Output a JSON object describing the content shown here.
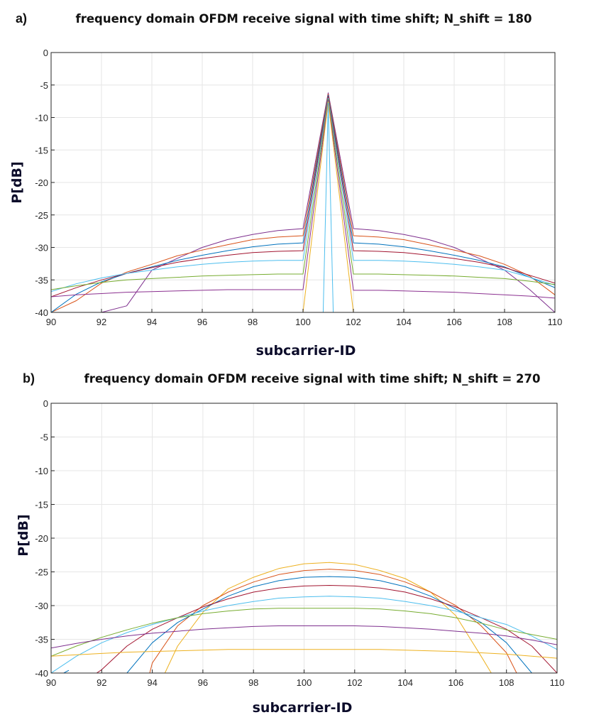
{
  "chart_data": [
    {
      "panel_label": "a)",
      "type": "line",
      "title": "frequency domain OFDM receive signal with time shift; N_shift = 180",
      "xlabel": "subcarrier-ID",
      "ylabel": "P[dB]",
      "xlim": [
        90,
        110
      ],
      "ylim": [
        -40,
        0
      ],
      "xticks": [
        90,
        92,
        94,
        96,
        98,
        100,
        102,
        104,
        106,
        108,
        110
      ],
      "yticks": [
        0,
        -5,
        -10,
        -15,
        -20,
        -25,
        -30,
        -35,
        -40
      ],
      "grid": true,
      "series": [
        {
          "color": "#7e2f8e",
          "x": [
            90,
            91,
            92,
            93,
            94,
            95,
            96,
            97,
            98,
            99,
            100,
            101,
            102,
            103,
            104,
            105,
            106,
            107,
            108,
            109,
            110
          ],
          "y": [
            -40,
            -40,
            -40,
            -39,
            -33.5,
            -31.7,
            -30,
            -28.8,
            -28,
            -27.4,
            -27.1,
            -6.2,
            -27.1,
            -27.4,
            -28,
            -28.8,
            -30,
            -31.7,
            -33.5,
            -36.5,
            -40
          ]
        },
        {
          "color": "#d95319",
          "x": [
            90,
            91,
            92,
            93,
            94,
            95,
            96,
            97,
            98,
            99,
            100,
            101,
            102,
            103,
            104,
            105,
            106,
            107,
            108,
            109,
            110
          ],
          "y": [
            -40,
            -38.2,
            -35.5,
            -33.8,
            -32.6,
            -31.3,
            -30.4,
            -29.6,
            -28.8,
            -28.4,
            -28.2,
            -6.4,
            -28.2,
            -28.4,
            -28.8,
            -29.6,
            -30.4,
            -31.3,
            -32.6,
            -34.4,
            -37.3
          ]
        },
        {
          "color": "#0072bd",
          "x": [
            90,
            91,
            92,
            93,
            94,
            95,
            96,
            97,
            98,
            99,
            100,
            101,
            102,
            103,
            104,
            105,
            106,
            107,
            108,
            109,
            110
          ],
          "y": [
            -40,
            -37.2,
            -35.3,
            -34,
            -33,
            -32,
            -31.2,
            -30.5,
            -29.9,
            -29.5,
            -29.3,
            -6.6,
            -29.3,
            -29.5,
            -29.9,
            -30.5,
            -31.2,
            -32,
            -33,
            -34.6,
            -36.2
          ]
        },
        {
          "color": "#a2142f",
          "x": [
            90,
            91,
            92,
            93,
            94,
            95,
            96,
            97,
            98,
            99,
            100,
            101,
            102,
            103,
            104,
            105,
            106,
            107,
            108,
            109,
            110
          ],
          "y": [
            -37.6,
            -36.2,
            -35,
            -34,
            -33.1,
            -32.3,
            -31.7,
            -31.2,
            -30.8,
            -30.6,
            -30.5,
            -6.8,
            -30.5,
            -30.6,
            -30.8,
            -31.2,
            -31.7,
            -32.3,
            -33.1,
            -34.3,
            -35.5
          ]
        },
        {
          "color": "#4dbeee",
          "x": [
            90,
            91,
            92,
            93,
            94,
            95,
            96,
            97,
            98,
            99,
            100,
            101,
            102,
            103,
            104,
            105,
            106,
            107,
            108,
            109,
            110
          ],
          "y": [
            -36.8,
            -35.6,
            -34.7,
            -34,
            -33.5,
            -33,
            -32.6,
            -32.3,
            -32.1,
            -32,
            -32,
            -7,
            -32,
            -32,
            -32.1,
            -32.3,
            -32.6,
            -33,
            -33.5,
            -34.6,
            -35.8
          ]
        },
        {
          "color": "#77ac30",
          "x": [
            90,
            91,
            92,
            93,
            94,
            95,
            96,
            97,
            98,
            99,
            100,
            101,
            102,
            103,
            104,
            105,
            106,
            107,
            108,
            109,
            110
          ],
          "y": [
            -36.5,
            -35.9,
            -35.4,
            -35,
            -34.8,
            -34.6,
            -34.4,
            -34.3,
            -34.2,
            -34.1,
            -34.1,
            -7.2,
            -34.1,
            -34.1,
            -34.2,
            -34.3,
            -34.4,
            -34.6,
            -34.8,
            -35.2,
            -35.7
          ]
        },
        {
          "color": "#8b3090",
          "x": [
            90,
            91,
            92,
            93,
            94,
            95,
            96,
            97,
            98,
            99,
            100,
            101,
            102,
            103,
            104,
            105,
            106,
            107,
            108,
            109,
            110
          ],
          "y": [
            -37.6,
            -37.3,
            -37.1,
            -36.9,
            -36.8,
            -36.7,
            -36.6,
            -36.5,
            -36.5,
            -36.5,
            -36.5,
            -7.4,
            -36.6,
            -36.6,
            -36.7,
            -36.8,
            -36.9,
            -37.1,
            -37.3,
            -37.5,
            -37.8
          ]
        },
        {
          "color": "#edb120",
          "x": [
            93.3,
            94,
            96,
            98,
            99,
            100,
            101,
            102
          ],
          "y": [
            -40,
            -40,
            -40,
            -40,
            -40,
            -40,
            -7.6,
            -40
          ]
        },
        {
          "color": "#4dbeee",
          "x": [
            100.8,
            101,
            101.2
          ],
          "y": [
            -40,
            -7.8,
            -40
          ]
        }
      ]
    },
    {
      "panel_label": "b)",
      "type": "line",
      "title": "frequency domain OFDM receive signal with time shift; N_shift = 270",
      "xlabel": "subcarrier-ID",
      "ylabel": "P[dB]",
      "xlim": [
        90,
        110
      ],
      "ylim": [
        -40,
        0
      ],
      "xticks": [
        90,
        92,
        94,
        96,
        98,
        100,
        102,
        104,
        106,
        108,
        110
      ],
      "yticks": [
        0,
        -5,
        -10,
        -15,
        -20,
        -25,
        -30,
        -35,
        -40
      ],
      "grid": true,
      "series": [
        {
          "color": "#edb120",
          "x": [
            94.5,
            95,
            96,
            97,
            98,
            99,
            100,
            101,
            102,
            103,
            104,
            105,
            106,
            107,
            107.4
          ],
          "y": [
            -40,
            -36,
            -31,
            -27.5,
            -25.8,
            -24.5,
            -23.8,
            -23.6,
            -23.9,
            -24.8,
            -26,
            -28,
            -31.5,
            -37.5,
            -40
          ]
        },
        {
          "color": "#d95319",
          "x": [
            93.9,
            94,
            95,
            96,
            97,
            98,
            99,
            100,
            101,
            102,
            103,
            104,
            105,
            106,
            107,
            108,
            108.4
          ],
          "y": [
            -40,
            -38.5,
            -33,
            -30,
            -28,
            -26.5,
            -25.4,
            -24.8,
            -24.6,
            -24.8,
            -25.4,
            -26.5,
            -28,
            -30,
            -33,
            -37,
            -40
          ]
        },
        {
          "color": "#0072bd",
          "x": [
            93,
            94,
            95,
            96,
            97,
            98,
            99,
            100,
            101,
            102,
            103,
            104,
            105,
            106,
            107,
            108,
            109
          ],
          "y": [
            -40,
            -35.5,
            -32.5,
            -30.5,
            -28.6,
            -27.2,
            -26.3,
            -25.8,
            -25.7,
            -25.8,
            -26.3,
            -27.2,
            -28.6,
            -30.5,
            -32.5,
            -35.5,
            -40
          ]
        },
        {
          "color": "#a2142f",
          "x": [
            91.8,
            92,
            93,
            94,
            95,
            96,
            97,
            98,
            99,
            100,
            101,
            102,
            103,
            104,
            105,
            106,
            107,
            108,
            109,
            110
          ],
          "y": [
            -40,
            -39.5,
            -36,
            -33.5,
            -31.8,
            -30.2,
            -29,
            -28,
            -27.4,
            -27.1,
            -27,
            -27.1,
            -27.4,
            -28,
            -29,
            -30.2,
            -31.8,
            -33.5,
            -36,
            -40
          ]
        },
        {
          "color": "#4dbeee",
          "x": [
            90,
            91,
            92,
            93,
            94,
            95,
            96,
            97,
            98,
            99,
            100,
            101,
            102,
            103,
            104,
            105,
            106,
            107,
            108,
            109,
            110
          ],
          "y": [
            -40,
            -37.5,
            -35.5,
            -34,
            -32.8,
            -31.8,
            -30.8,
            -30,
            -29.4,
            -28.9,
            -28.7,
            -28.6,
            -28.7,
            -28.9,
            -29.4,
            -30,
            -30.8,
            -31.8,
            -32.8,
            -34.5,
            -36.5
          ]
        },
        {
          "color": "#77ac30",
          "x": [
            90,
            91,
            92,
            93,
            94,
            95,
            96,
            97,
            98,
            99,
            100,
            101,
            102,
            103,
            104,
            105,
            106,
            107,
            108,
            109,
            110
          ],
          "y": [
            -37.5,
            -36,
            -34.7,
            -33.6,
            -32.6,
            -31.8,
            -31.2,
            -30.8,
            -30.5,
            -30.4,
            -30.4,
            -30.4,
            -30.4,
            -30.5,
            -30.8,
            -31.2,
            -31.8,
            -32.6,
            -33.6,
            -34.3,
            -35
          ]
        },
        {
          "color": "#7e2f8e",
          "x": [
            90,
            91,
            92,
            93,
            94,
            95,
            96,
            97,
            98,
            99,
            100,
            101,
            102,
            103,
            104,
            105,
            106,
            107,
            108,
            109,
            110
          ],
          "y": [
            -36.3,
            -35.6,
            -35,
            -34.5,
            -34.1,
            -33.8,
            -33.5,
            -33.3,
            -33.1,
            -33,
            -33,
            -33,
            -33,
            -33.1,
            -33.3,
            -33.5,
            -33.8,
            -34.1,
            -34.5,
            -35.1,
            -35.8
          ]
        },
        {
          "color": "#edb120",
          "x": [
            90,
            91,
            92,
            93,
            94,
            95,
            96,
            97,
            98,
            99,
            100,
            101,
            102,
            103,
            104,
            105,
            106,
            107,
            108,
            109,
            110
          ],
          "y": [
            -37.5,
            -37.3,
            -37.1,
            -36.9,
            -36.8,
            -36.7,
            -36.6,
            -36.5,
            -36.5,
            -36.5,
            -36.5,
            -36.5,
            -36.5,
            -36.5,
            -36.6,
            -36.7,
            -36.8,
            -37,
            -37.2,
            -37.5,
            -37.8
          ]
        },
        {
          "color": "#0072bd",
          "x": [
            90.5,
            90.7
          ],
          "y": [
            -40,
            -39.6
          ]
        }
      ]
    }
  ]
}
